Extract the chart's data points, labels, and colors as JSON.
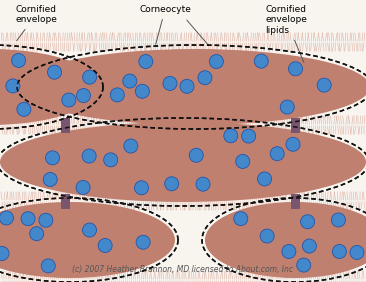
{
  "bg_color": "#f8f4ee",
  "cell_color": "#c08070",
  "cell_fill": "#bf8070",
  "dot_color": "#4488cc",
  "dot_edge_color": "#2255aa",
  "desmosome_color": "#7a5570",
  "lipid_bg": "#f0e8e4",
  "lipid_line_color": "#ddb0a0",
  "dash_color": "#111111",
  "white_gap_color": "#f8f4f0",
  "copyright_text": "(c) 2007 Heather Brannon, MD licensed to About.com, Inc",
  "label1": "Cornified\nenvelope",
  "label2": "Corneocyte",
  "label3": "Cornified\nenvelope\nlipids",
  "fig_w": 3.66,
  "fig_h": 2.82,
  "dpi": 100
}
